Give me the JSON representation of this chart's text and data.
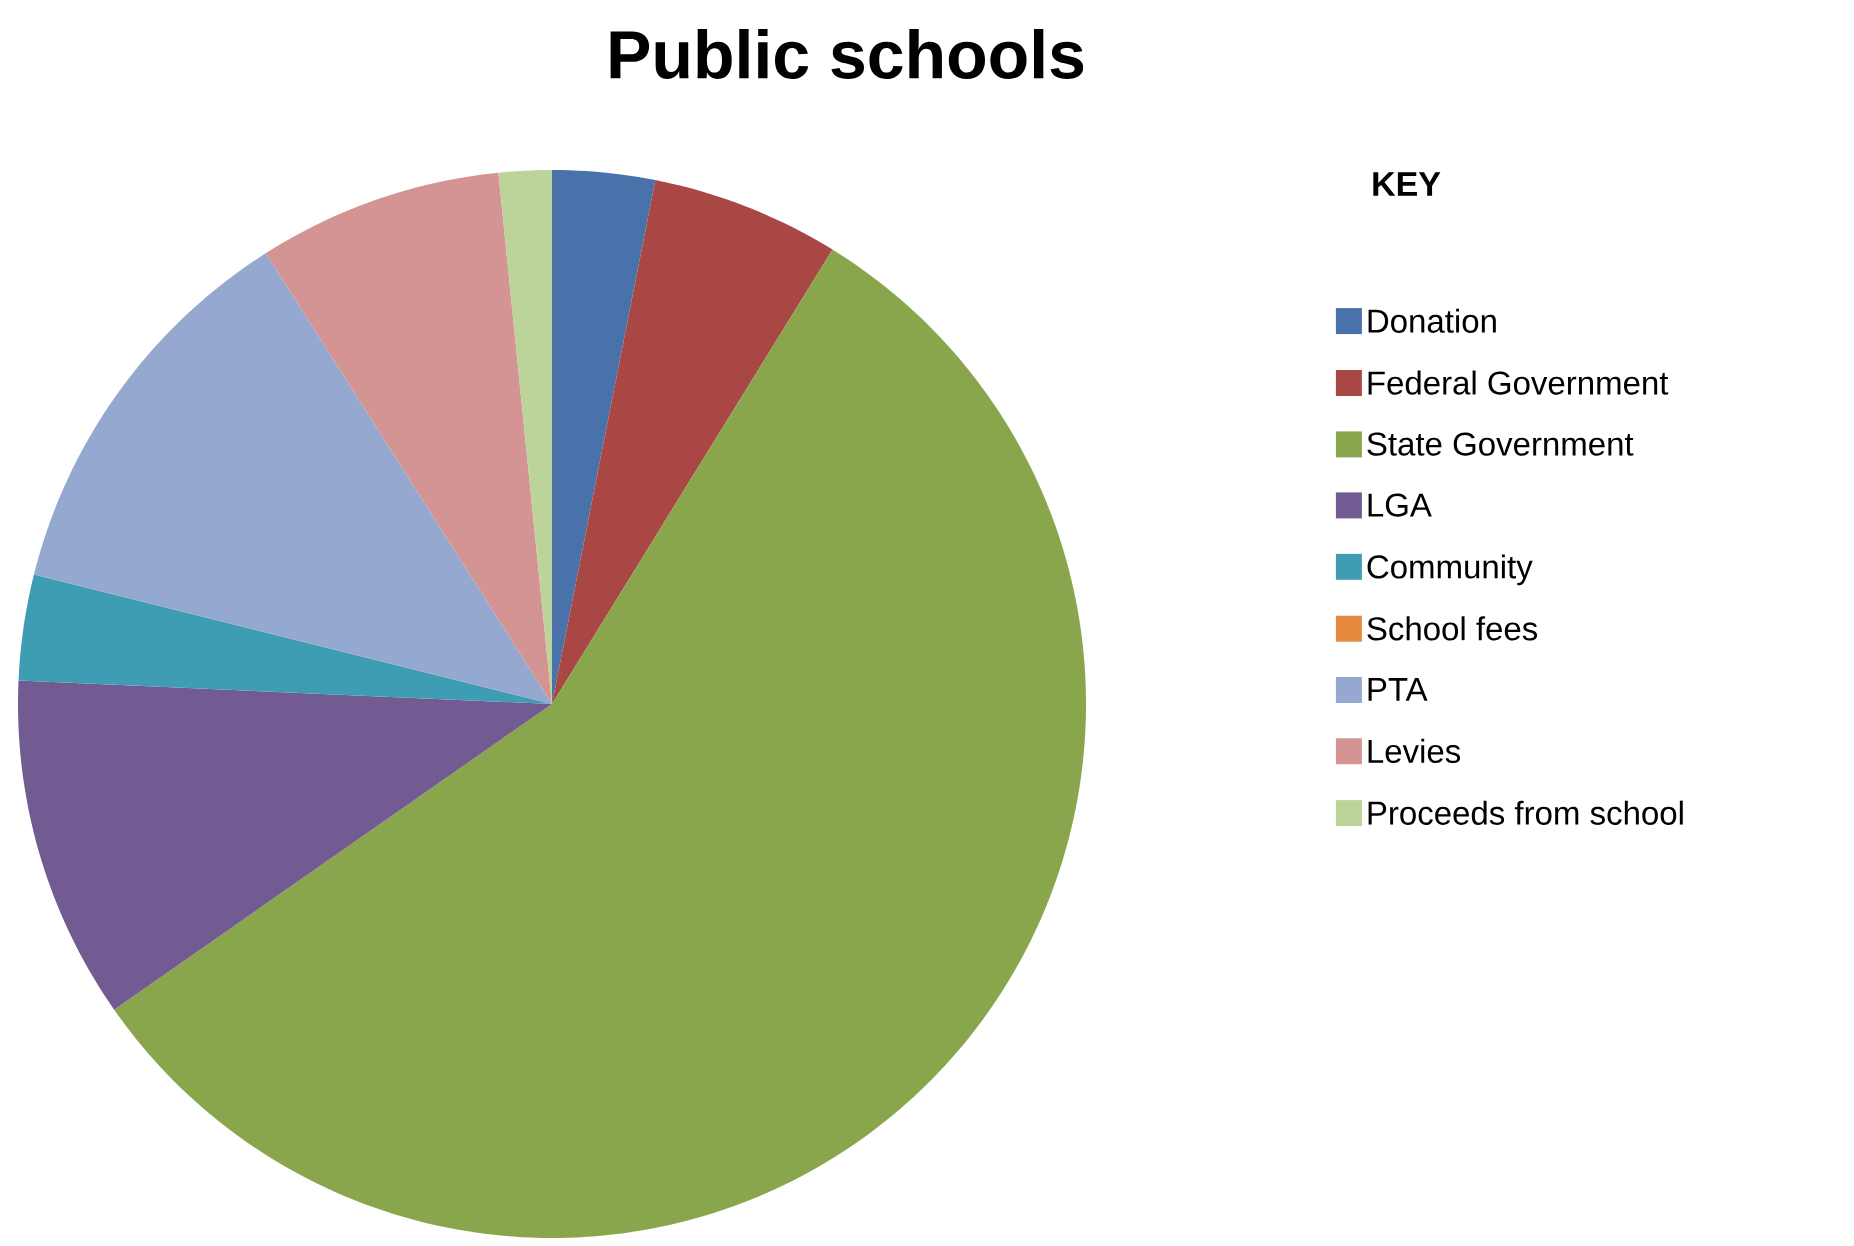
{
  "chart_data": {
    "type": "pie",
    "title": "Public schools",
    "legend_title": "KEY",
    "legend": "right",
    "categories": [
      "Donation",
      "Federal Government",
      "State Government",
      "LGA",
      "Community",
      "School fees",
      "PTA",
      "Levies",
      "Proceeds from school"
    ],
    "values": [
      3.1,
      5.7,
      56.5,
      10.4,
      3.2,
      0,
      12.1,
      7.4,
      1.6
    ],
    "colors": [
      "#4a72aa",
      "#a94744",
      "#8aa64d",
      "#725a92",
      "#3f9db3",
      "#e5893c",
      "#95a9d0",
      "#d49494",
      "#bcd39a"
    ]
  }
}
